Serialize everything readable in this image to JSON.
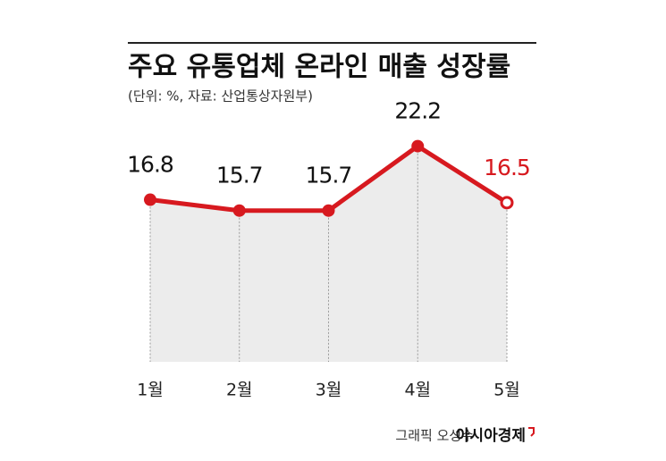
{
  "chart_data": {
    "type": "line",
    "title": "주요 유통업체 온라인 매출 성장률",
    "subtitle": "(단위: %, 자료: 산업통상자원부)",
    "categories": [
      "1월",
      "2월",
      "3월",
      "4월",
      "5월"
    ],
    "values": [
      16.8,
      15.7,
      15.7,
      22.2,
      16.5
    ],
    "color": "#d7191f",
    "credit": "그래픽 오성수",
    "source_logo": "아시아경제"
  }
}
